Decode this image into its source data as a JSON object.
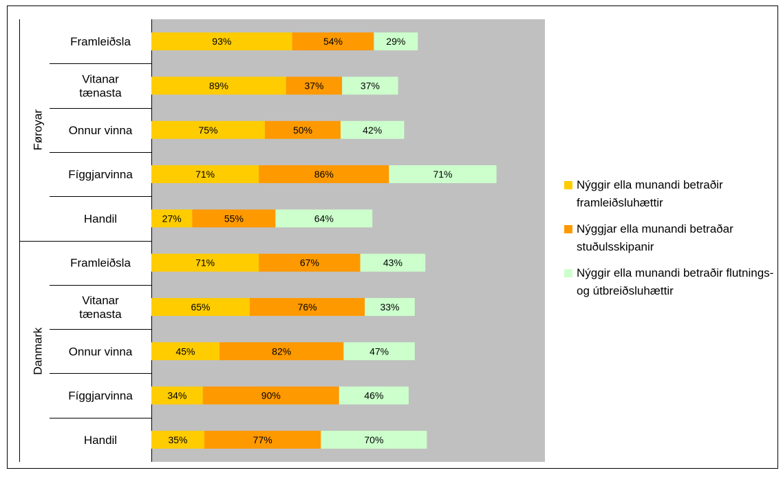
{
  "chart_data": {
    "type": "bar",
    "orientation": "horizontal",
    "stacked": true,
    "groups": [
      {
        "name": "Føroyar",
        "categories": [
          "Framleiðsla",
          "Vitanar tænasta",
          "Onnur vinna",
          "Fíggjarvinna",
          "Handil"
        ],
        "series_values": [
          [
            93,
            89,
            75,
            71,
            27
          ],
          [
            54,
            37,
            50,
            86,
            55
          ],
          [
            29,
            37,
            42,
            71,
            64
          ]
        ]
      },
      {
        "name": "Danmark",
        "categories": [
          "Framleiðsla",
          "Vitanar tænasta",
          "Onnur vinna",
          "Fíggjarvinna",
          "Handil"
        ],
        "series_values": [
          [
            71,
            65,
            45,
            34,
            35
          ],
          [
            67,
            76,
            82,
            90,
            77
          ],
          [
            43,
            33,
            47,
            46,
            70
          ]
        ]
      }
    ],
    "series": [
      {
        "name": "Nýggir ella munandi betraðir framleiðsluhættir",
        "color": "#FFCC00"
      },
      {
        "name": "Nýggjar ella munandi betraðar stuðulsskipanir",
        "color": "#FF9900"
      },
      {
        "name": "Nýggir ella munandi betraðir flutnings- og útbreiðsluhættir",
        "color": "#CCFFCC"
      }
    ],
    "value_suffix": "%",
    "xlim": [
      0,
      260
    ],
    "plot_background": "#C0C0C0",
    "grid": false,
    "legend_position": "right"
  }
}
